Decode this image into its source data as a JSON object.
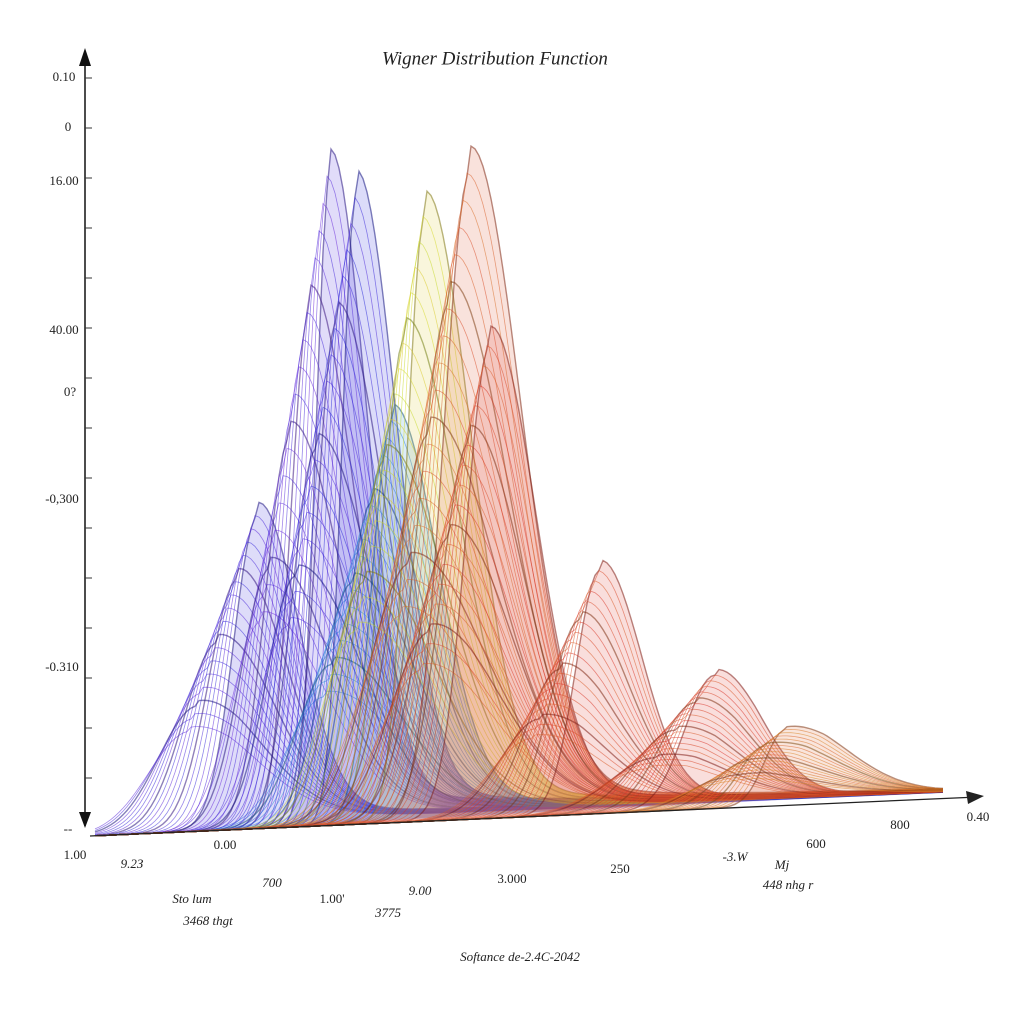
{
  "title": "Wigner Distribution Function",
  "y_axis_labels": [
    "0.10",
    "0",
    "16.00",
    "40.00",
    "0?",
    "-0,300",
    "-0.310"
  ],
  "floor_labels": [
    "-- ",
    "1.00",
    "9.2З",
    "0.00",
    "Sto lum",
    "3468 thgt",
    "700",
    "1.00'",
    "9.00",
    "3775",
    "3.000",
    "250",
    "-3.W",
    "Mj",
    "448 nhg r",
    "600",
    "800",
    "0.40"
  ],
  "caption": "Softance de-2.4C-2042"
}
